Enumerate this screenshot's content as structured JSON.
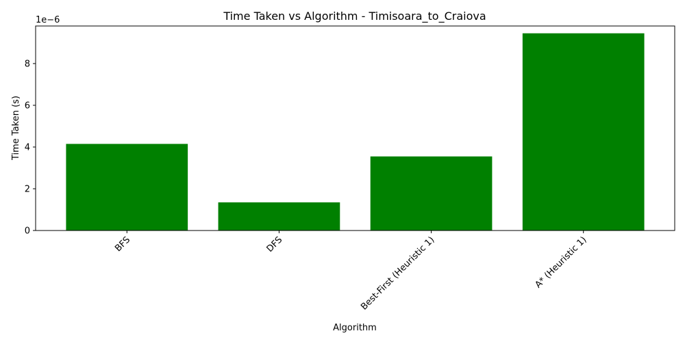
{
  "chart_data": {
    "type": "bar",
    "title": "Time Taken vs Algorithm - Timisoara_to_Craiova",
    "xlabel": "Algorithm",
    "ylabel": "Time Taken (s)",
    "scale_label": "1e−6",
    "categories": [
      "BFS",
      "DFS",
      "Best-First (Heuristic 1)",
      "A* (Heuristic 1)"
    ],
    "values": [
      4.15,
      1.35,
      3.55,
      9.45
    ],
    "ylim": [
      0,
      9.8
    ],
    "y_ticks": [
      0,
      2,
      4,
      6,
      8
    ],
    "y_tick_labels": [
      "0",
      "2",
      "4",
      "6",
      "8"
    ],
    "bar_color": "#008000",
    "grid": false,
    "legend": "none"
  }
}
